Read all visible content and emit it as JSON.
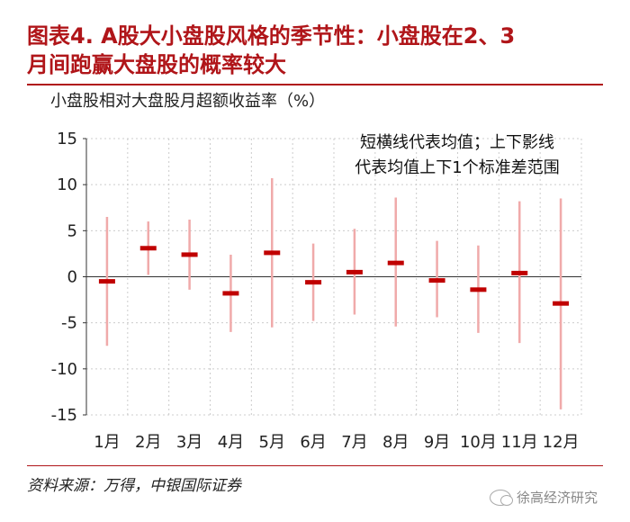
{
  "figure": {
    "title_line1": "图表4. A股大小盘股风格的季节性：小盘股在2、3",
    "title_line2": "月间跑赢大盘股的概率较大"
  },
  "source": "资料来源：万得，中银国际证券",
  "watermark": "徐高经济研究",
  "colors": {
    "title": "#b01519",
    "mean": "#c00000",
    "range": "#f0aaaa"
  },
  "chart_data": {
    "type": "error-bar",
    "title": "",
    "ylabel": "小盘股相对大盘股月超额收益率（%）",
    "ylim": [
      -15,
      15
    ],
    "yticks": [
      15,
      10,
      5,
      0,
      -5,
      -10,
      -15
    ],
    "grid": true,
    "annotation_line1": "短横线代表均值；上下影线",
    "annotation_line2": "代表均值上下1个标准差范围",
    "categories": [
      "1月",
      "2月",
      "3月",
      "4月",
      "5月",
      "6月",
      "7月",
      "8月",
      "9月",
      "10月",
      "11月",
      "12月"
    ],
    "mean": [
      -0.5,
      3.1,
      2.4,
      -1.8,
      2.6,
      -0.6,
      0.5,
      1.5,
      -0.4,
      -1.4,
      0.4,
      -2.9
    ],
    "low": [
      -7.5,
      0.2,
      -1.4,
      -6.0,
      -5.5,
      -4.8,
      -4.1,
      -5.4,
      -4.4,
      -6.1,
      -7.2,
      -14.4
    ],
    "high": [
      6.5,
      6.0,
      6.2,
      2.4,
      10.7,
      3.6,
      5.2,
      8.6,
      3.9,
      3.4,
      8.2,
      8.5
    ]
  }
}
